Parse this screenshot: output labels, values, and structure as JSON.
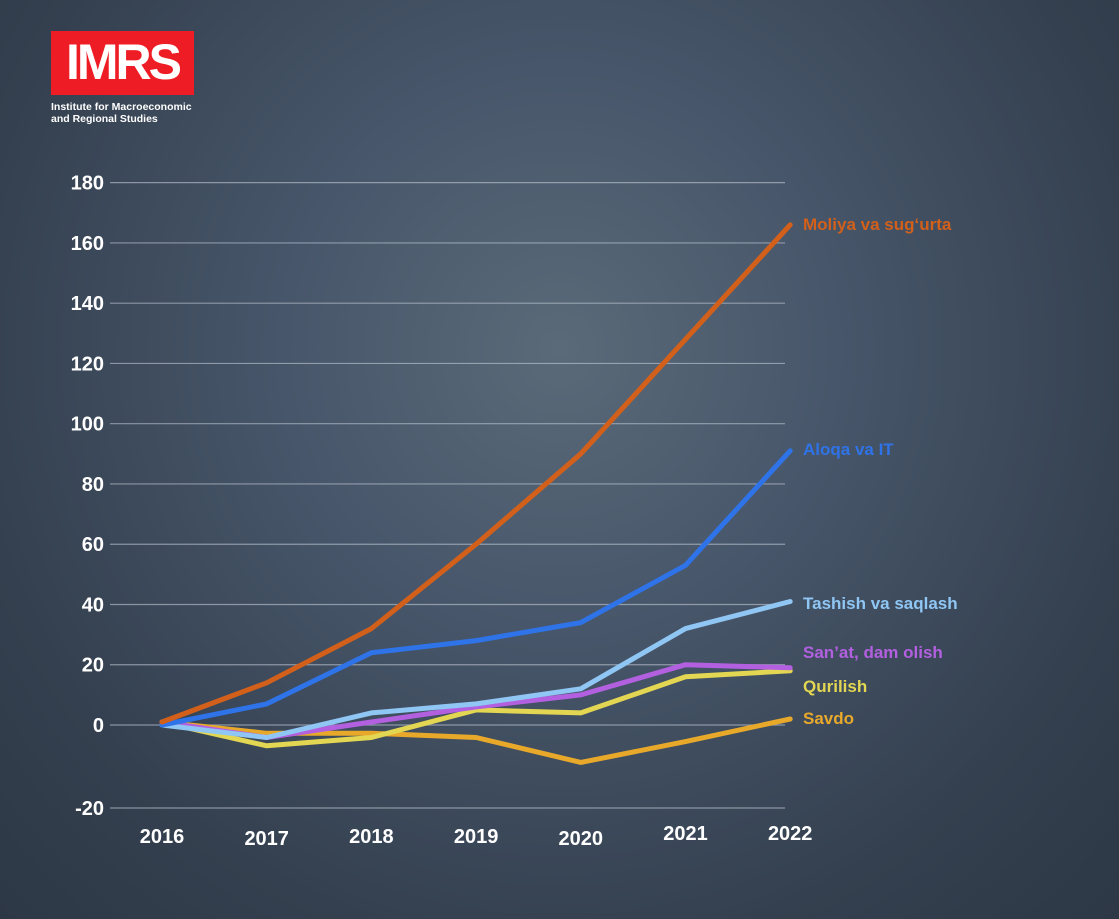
{
  "logo": {
    "mark": "IMRS",
    "line1": "Institute for Macroeconomic",
    "line2": "and Regional Studies",
    "color": "#ee1c24"
  },
  "chart_data": {
    "type": "line",
    "title": "",
    "xlabel": "",
    "ylabel": "",
    "x": [
      "2016",
      "2017",
      "2018",
      "2019",
      "2020",
      "2021",
      "2022"
    ],
    "y_ticks": [
      -20,
      0,
      20,
      40,
      60,
      80,
      100,
      120,
      140,
      160,
      180
    ],
    "ylim": [
      -20,
      180
    ],
    "grid": "horizontal",
    "legend": "direct labels at line ends (right)",
    "series": [
      {
        "name": "Moliya va sug‘urta",
        "color": "#d2601b",
        "values": [
          1,
          14,
          32,
          60,
          90,
          128,
          166
        ]
      },
      {
        "name": "Aloqa va IT",
        "color": "#2f73e8",
        "values": [
          0,
          7,
          24,
          28,
          34,
          53,
          91
        ]
      },
      {
        "name": "Tashish va saqlash",
        "color": "#8fc6f4",
        "values": [
          0,
          -3,
          4,
          7,
          12,
          32,
          41
        ]
      },
      {
        "name": "San’at, dam olish",
        "color": "#b260e0",
        "values": [
          1,
          -3,
          1,
          6,
          10,
          20,
          19
        ]
      },
      {
        "name": "Qurilish",
        "color": "#e3d652",
        "values": [
          1,
          -5,
          -3,
          5,
          4,
          16,
          18
        ]
      },
      {
        "name": "Savdo",
        "color": "#e8a92b",
        "values": [
          1,
          -2,
          -2,
          -3,
          -9,
          -4,
          2
        ]
      }
    ]
  }
}
